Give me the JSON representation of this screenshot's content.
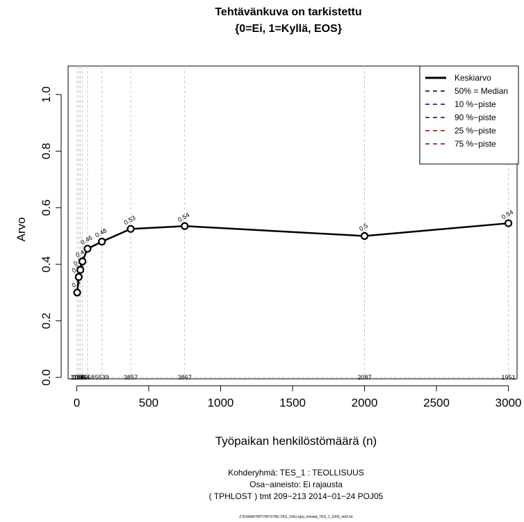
{
  "title_line1": "Tehtävänkuva on tarkistettu",
  "title_line2": "{0=Ei, 1=Kyllä, EOS}",
  "footer": {
    "line1": "Kohderyhmä:  TES_1 : TEOLLISUUS",
    "line2": "Osa−aineisto:  Ei rajausta",
    "line3": "( TPHLOST )  tmt 209−213 2014−01−24 POJ05",
    "path": "Z:\\D\\ANA\\TMT\\TMT2\\TBL\\TES_1\\ALL\\grp_minstat_TES_1_1005_tmt2.txt"
  },
  "chart_data": {
    "type": "line",
    "xlabel": "Työpaikan henkilöstömäärä (n)",
    "ylabel": "Arvo",
    "xlim": [
      -60,
      3060
    ],
    "ylim": [
      0,
      1
    ],
    "xticks": [
      0,
      500,
      1000,
      1500,
      2000,
      2500,
      3000
    ],
    "xtick_labels": [
      "0",
      "500",
      "1000",
      "1500",
      "2000",
      "2500",
      "3000"
    ],
    "yticks": [
      0,
      0.2,
      0.4,
      0.6,
      0.8,
      1
    ],
    "ytick_labels": [
      "0.0",
      "0.2",
      "0.4",
      "0.6",
      "0.8",
      "1.0"
    ],
    "grid": "dashed vertical lines at each x value, dashed horizontal line at y=0",
    "series": [
      {
        "name": "Keskiarvo",
        "color": "#000000",
        "x": [
          3,
          14,
          25,
          40,
          75,
          175,
          375,
          750,
          2000,
          3000
        ],
        "values": [
          0.3,
          0.355,
          0.38,
          0.41,
          0.455,
          0.48,
          0.525,
          0.535,
          0.5,
          0.545
        ],
        "point_labels": [
          "0.3",
          "0.36",
          "0.38",
          "0.41",
          "0.46",
          "0.48",
          "0.53",
          "0.54",
          "0.5",
          "0.54"
        ],
        "n_labels": [
          "1188",
          "1085",
          "1045",
          "1554",
          "1658",
          "5539",
          "3857",
          "3867",
          "2087",
          "1951"
        ]
      }
    ],
    "legend": {
      "position": "top-right",
      "entries": [
        {
          "label": "Keskiarvo",
          "color": "#000000",
          "style": "solid-thick"
        },
        {
          "label": "50% = Median",
          "color": "#000000",
          "style": "dashed"
        },
        {
          "label": "10 %−piste",
          "color": "#00008b",
          "style": "dashed"
        },
        {
          "label": "90 %−piste",
          "color": "#00008b",
          "style": "dashed"
        },
        {
          "label": "25 %−piste",
          "color": "#8b0000",
          "style": "dashed"
        },
        {
          "label": "75 %−piste",
          "color": "#8b0000",
          "style": "dashed"
        }
      ]
    }
  }
}
